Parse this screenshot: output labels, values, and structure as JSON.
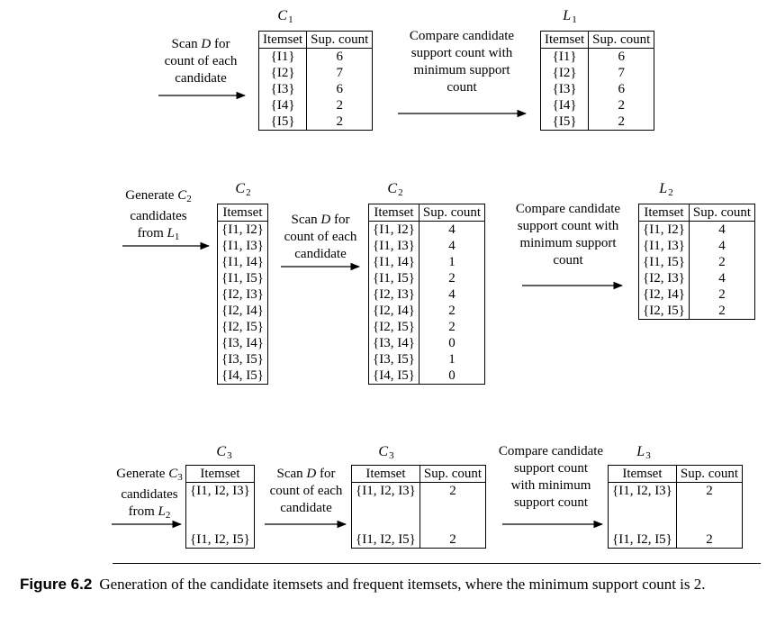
{
  "headers": {
    "itemset": "Itemset",
    "support": "Sup. count"
  },
  "row1": {
    "scan_text": [
      "Scan D for",
      "count of each",
      "candidate"
    ],
    "c1": {
      "label": "C",
      "sub": "1",
      "rows": [
        [
          "{I1}",
          "6"
        ],
        [
          "{I2}",
          "7"
        ],
        [
          "{I3}",
          "6"
        ],
        [
          "{I4}",
          "2"
        ],
        [
          "{I5}",
          "2"
        ]
      ]
    },
    "compare_text": [
      "Compare candidate",
      "support count with",
      "minimum support",
      "count"
    ],
    "l1": {
      "label": "L",
      "sub": "1",
      "rows": [
        [
          "{I1}",
          "6"
        ],
        [
          "{I2}",
          "7"
        ],
        [
          "{I3}",
          "6"
        ],
        [
          "{I4}",
          "2"
        ],
        [
          "{I5}",
          "2"
        ]
      ]
    }
  },
  "row2": {
    "generate_text": [
      "Generate C",
      "candidates",
      "from L"
    ],
    "generate_subs": [
      "2",
      "1"
    ],
    "c2_candidates": {
      "label": "C",
      "sub": "2",
      "rows": [
        "{I1, I2}",
        "{I1, I3}",
        "{I1, I4}",
        "{I1, I5}",
        "{I2, I3}",
        "{I2, I4}",
        "{I2, I5}",
        "{I3, I4}",
        "{I3, I5}",
        "{I4, I5}"
      ]
    },
    "scan_text": [
      "Scan D for",
      "count of each",
      "candidate"
    ],
    "c2_counts": {
      "label": "C",
      "sub": "2",
      "rows": [
        [
          "{I1, I2}",
          "4"
        ],
        [
          "{I1, I3}",
          "4"
        ],
        [
          "{I1, I4}",
          "1"
        ],
        [
          "{I1, I5}",
          "2"
        ],
        [
          "{I2, I3}",
          "4"
        ],
        [
          "{I2, I4}",
          "2"
        ],
        [
          "{I2, I5}",
          "2"
        ],
        [
          "{I3, I4}",
          "0"
        ],
        [
          "{I3, I5}",
          "1"
        ],
        [
          "{I4, I5}",
          "0"
        ]
      ]
    },
    "compare_text": [
      "Compare candidate",
      "support count with",
      "minimum support",
      "count"
    ],
    "l2": {
      "label": "L",
      "sub": "2",
      "rows": [
        [
          "{I1, I2}",
          "4"
        ],
        [
          "{I1, I3}",
          "4"
        ],
        [
          "{I1, I5}",
          "2"
        ],
        [
          "{I2, I3}",
          "4"
        ],
        [
          "{I2, I4}",
          "2"
        ],
        [
          "{I2, I5}",
          "2"
        ]
      ]
    }
  },
  "row3": {
    "generate_text": [
      "Generate C",
      "candidates",
      "from L"
    ],
    "generate_subs": [
      "3",
      "2"
    ],
    "c3_candidates": {
      "label": "C",
      "sub": "3",
      "rows": [
        "{I1, I2, I3}",
        "{I1, I2, I5}"
      ]
    },
    "scan_text": [
      "Scan D for",
      "count of each",
      "candidate"
    ],
    "c3_counts": {
      "label": "C",
      "sub": "3",
      "rows": [
        [
          "{I1, I2, I3}",
          "2"
        ],
        [
          "{I1, I2, I5}",
          "2"
        ]
      ]
    },
    "compare_text": [
      "Compare candidate",
      "support count",
      "with minimum",
      "support count"
    ],
    "l3": {
      "label": "L",
      "sub": "3",
      "rows": [
        [
          "{I1, I2, I3}",
          "2"
        ],
        [
          "{I1, I2, I5}",
          "2"
        ]
      ]
    }
  },
  "caption": {
    "figure": "Figure 6.2",
    "text": "Generation of the candidate itemsets and frequent itemsets, where the minimum support count is 2."
  }
}
